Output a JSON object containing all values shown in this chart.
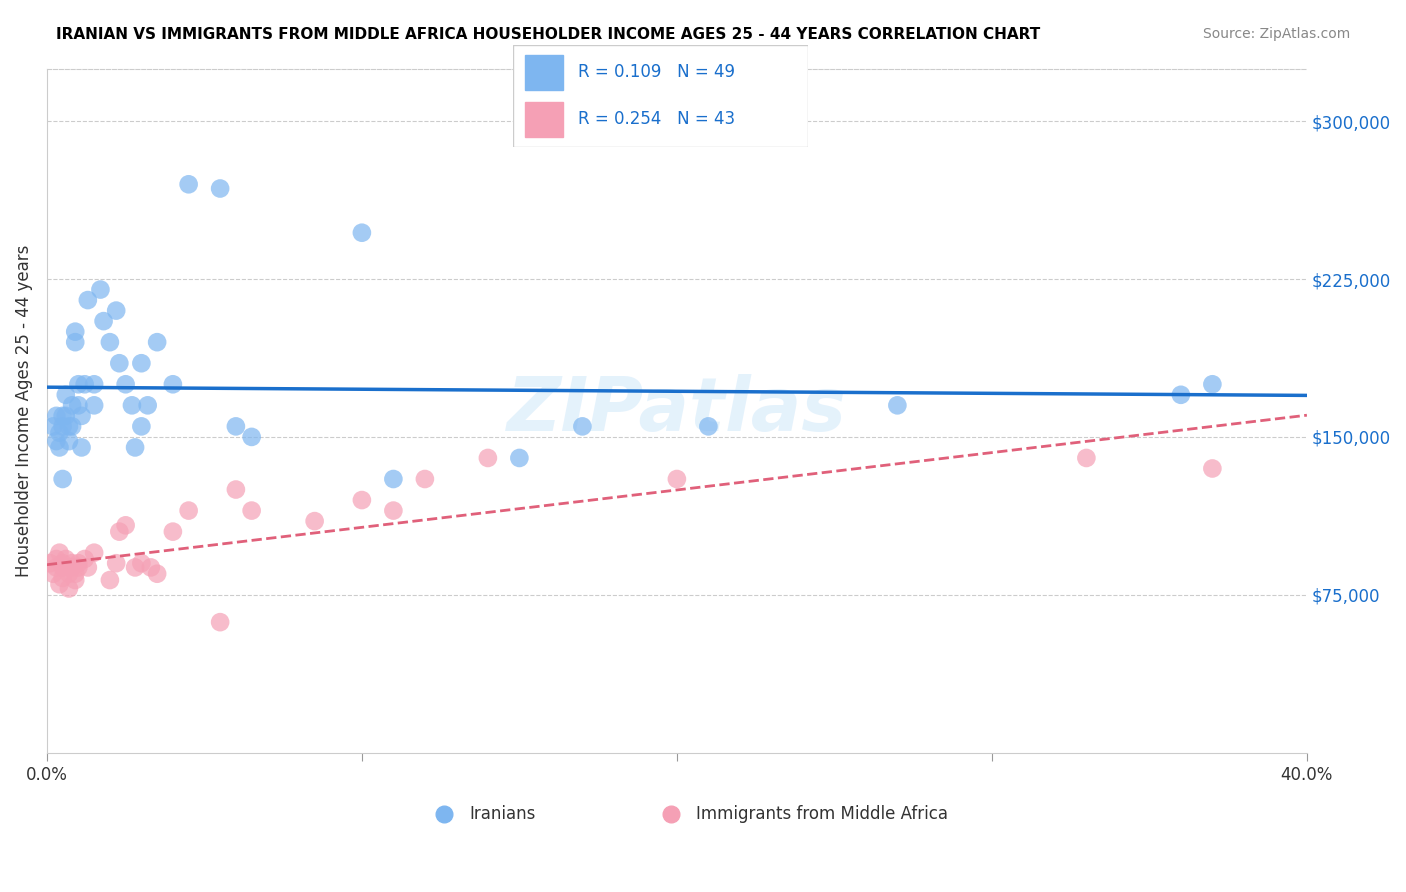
{
  "title": "IRANIAN VS IMMIGRANTS FROM MIDDLE AFRICA HOUSEHOLDER INCOME AGES 25 - 44 YEARS CORRELATION CHART",
  "source": "Source: ZipAtlas.com",
  "ylabel": "Householder Income Ages 25 - 44 years",
  "xlim": [
    0,
    0.4
  ],
  "ylim": [
    0,
    325000
  ],
  "xticks": [
    0.0,
    0.1,
    0.2,
    0.3,
    0.4
  ],
  "ytick_values": [
    75000,
    150000,
    225000,
    300000
  ],
  "ytick_labels": [
    "$75,000",
    "$150,000",
    "$225,000",
    "$300,000"
  ],
  "watermark": "ZIPatlas",
  "blue_color": "#7eb6f0",
  "pink_color": "#f5a0b5",
  "blue_line_color": "#1a6fcc",
  "pink_line_color": "#e0607a",
  "legend_text_color": "#1a6fcc",
  "blue_scatter_x": [
    0.002,
    0.003,
    0.003,
    0.004,
    0.004,
    0.005,
    0.005,
    0.005,
    0.006,
    0.006,
    0.007,
    0.007,
    0.008,
    0.008,
    0.009,
    0.009,
    0.01,
    0.01,
    0.011,
    0.011,
    0.012,
    0.013,
    0.015,
    0.015,
    0.017,
    0.018,
    0.02,
    0.022,
    0.023,
    0.025,
    0.027,
    0.028,
    0.03,
    0.03,
    0.032,
    0.035,
    0.04,
    0.045,
    0.055,
    0.06,
    0.065,
    0.1,
    0.11,
    0.15,
    0.17,
    0.21,
    0.27,
    0.36,
    0.37
  ],
  "blue_scatter_y": [
    155000,
    160000,
    148000,
    152000,
    145000,
    130000,
    160000,
    155000,
    170000,
    160000,
    155000,
    148000,
    165000,
    155000,
    200000,
    195000,
    175000,
    165000,
    160000,
    145000,
    175000,
    215000,
    175000,
    165000,
    220000,
    205000,
    195000,
    210000,
    185000,
    175000,
    165000,
    145000,
    185000,
    155000,
    165000,
    195000,
    175000,
    270000,
    268000,
    155000,
    150000,
    247000,
    130000,
    140000,
    155000,
    155000,
    165000,
    170000,
    175000
  ],
  "pink_scatter_x": [
    0.001,
    0.002,
    0.003,
    0.003,
    0.004,
    0.004,
    0.005,
    0.005,
    0.005,
    0.006,
    0.006,
    0.007,
    0.007,
    0.008,
    0.008,
    0.009,
    0.009,
    0.01,
    0.01,
    0.012,
    0.013,
    0.015,
    0.02,
    0.022,
    0.023,
    0.025,
    0.028,
    0.03,
    0.033,
    0.035,
    0.04,
    0.045,
    0.055,
    0.06,
    0.065,
    0.085,
    0.1,
    0.11,
    0.12,
    0.14,
    0.2,
    0.33,
    0.37
  ],
  "pink_scatter_y": [
    90000,
    85000,
    88000,
    92000,
    95000,
    80000,
    90000,
    88000,
    83000,
    88000,
    92000,
    85000,
    78000,
    90000,
    88000,
    82000,
    85000,
    88000,
    90000,
    92000,
    88000,
    95000,
    82000,
    90000,
    105000,
    108000,
    88000,
    90000,
    88000,
    85000,
    105000,
    115000,
    62000,
    125000,
    115000,
    110000,
    120000,
    115000,
    130000,
    140000,
    130000,
    140000,
    135000
  ]
}
